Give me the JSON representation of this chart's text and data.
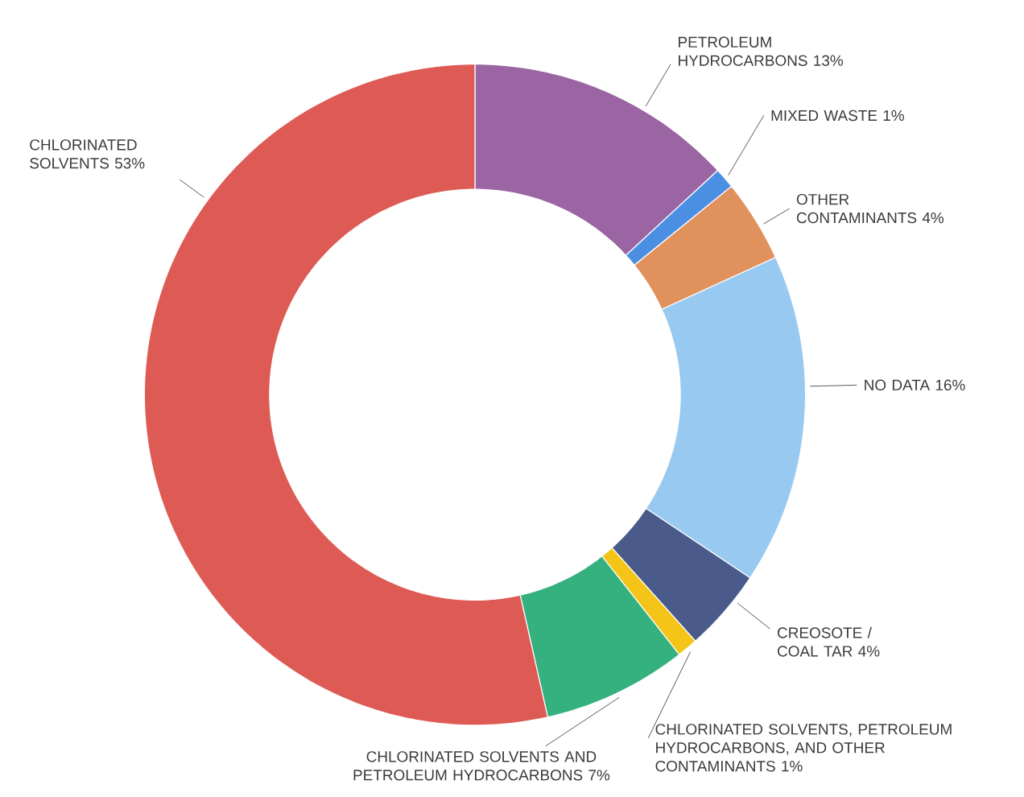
{
  "chart_data": {
    "type": "donut",
    "categories": [
      "PETROLEUM HYDROCARBONS",
      "MIXED WASTE",
      "OTHER CONTAMINANTS",
      "NO DATA",
      "CREOSOTE / COAL TAR",
      "CHLORINATED SOLVENTS, PETROLEUM HYDROCARBONS, AND OTHER CONTAMINANTS",
      "CHLORINATED SOLVENTS AND PETROLEUM HYDROCARBONS",
      "CHLORINATED SOLVENTS"
    ],
    "values": [
      13,
      1,
      4,
      16,
      4,
      1,
      7,
      53
    ],
    "value_labels": [
      "13%",
      "1%",
      "4%",
      "16%",
      "4%",
      "1%",
      "7%",
      "53%"
    ],
    "colors": [
      "#9b65a3",
      "#4a8fe2",
      "#e0915c",
      "#97c9f1",
      "#4a5b8b",
      "#f4c518",
      "#35b07f",
      "#de5b55"
    ]
  }
}
